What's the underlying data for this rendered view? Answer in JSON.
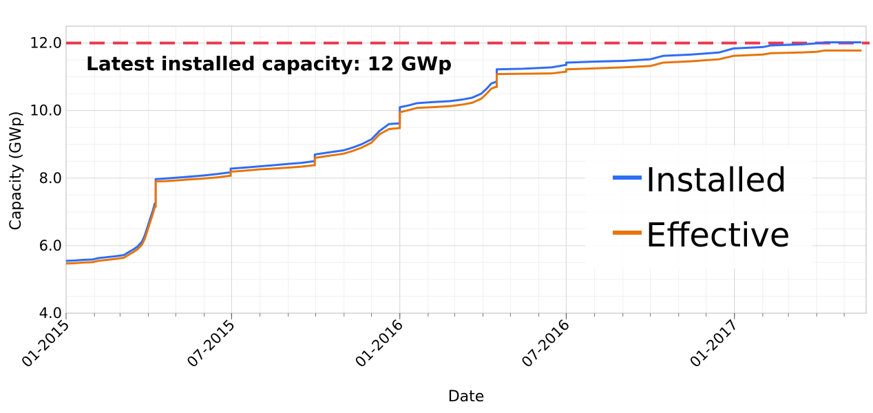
{
  "chart_data": {
    "type": "line",
    "xlabel": "Date",
    "ylabel": "Capacity (GWp)",
    "x_ticks": [
      "01-2015",
      "07-2015",
      "01-2016",
      "07-2016",
      "01-2017"
    ],
    "y_ticks": [
      "4.0",
      "6.0",
      "8.0",
      "10.0",
      "12.0"
    ],
    "xlim": [
      "2015-01-01",
      "2017-05-25"
    ],
    "ylim": [
      4.0,
      12.5
    ],
    "grid": true,
    "legend_position": "center-right",
    "annotation": "Latest installed capacity: 12 GWp",
    "reference_line": {
      "y": 12.0,
      "style": "dashed",
      "color": "#e8384f"
    },
    "series": [
      {
        "name": "Installed",
        "color": "#2f6cf6",
        "points": [
          [
            "2015-01-01",
            5.55
          ],
          [
            "2015-01-10",
            5.56
          ],
          [
            "2015-01-20",
            5.58
          ],
          [
            "2015-01-30",
            5.59
          ],
          [
            "2015-02-05",
            5.63
          ],
          [
            "2015-02-15",
            5.66
          ],
          [
            "2015-02-25",
            5.69
          ],
          [
            "2015-03-05",
            5.72
          ],
          [
            "2015-03-10",
            5.8
          ],
          [
            "2015-03-15",
            5.88
          ],
          [
            "2015-03-20",
            5.97
          ],
          [
            "2015-03-25",
            6.12
          ],
          [
            "2015-03-28",
            6.3
          ],
          [
            "2015-03-31",
            6.55
          ],
          [
            "2015-04-03",
            6.8
          ],
          [
            "2015-04-06",
            7.05
          ],
          [
            "2015-04-08",
            7.25
          ],
          [
            "2015-04-09",
            7.97
          ],
          [
            "2015-04-20",
            7.99
          ],
          [
            "2015-05-01",
            8.01
          ],
          [
            "2015-05-15",
            8.04
          ],
          [
            "2015-06-01",
            8.08
          ],
          [
            "2015-06-15",
            8.12
          ],
          [
            "2015-06-29",
            8.17
          ],
          [
            "2015-06-30",
            8.28
          ],
          [
            "2015-07-15",
            8.31
          ],
          [
            "2015-08-01",
            8.35
          ],
          [
            "2015-08-15",
            8.38
          ],
          [
            "2015-09-01",
            8.42
          ],
          [
            "2015-09-15",
            8.45
          ],
          [
            "2015-09-29",
            8.5
          ],
          [
            "2015-09-30",
            8.7
          ],
          [
            "2015-10-15",
            8.76
          ],
          [
            "2015-10-31",
            8.82
          ],
          [
            "2015-11-10",
            8.9
          ],
          [
            "2015-11-20",
            9.0
          ],
          [
            "2015-12-01",
            9.15
          ],
          [
            "2015-12-10",
            9.4
          ],
          [
            "2015-12-20",
            9.6
          ],
          [
            "2015-12-31",
            9.62
          ],
          [
            "2016-01-01",
            10.1
          ],
          [
            "2016-01-10",
            10.15
          ],
          [
            "2016-01-20",
            10.22
          ],
          [
            "2016-02-05",
            10.25
          ],
          [
            "2016-02-25",
            10.28
          ],
          [
            "2016-03-10",
            10.33
          ],
          [
            "2016-03-20",
            10.38
          ],
          [
            "2016-03-30",
            10.5
          ],
          [
            "2016-04-05",
            10.65
          ],
          [
            "2016-04-10",
            10.8
          ],
          [
            "2016-04-15",
            10.85
          ],
          [
            "2016-04-16",
            11.22
          ],
          [
            "2016-05-15",
            11.24
          ],
          [
            "2016-06-15",
            11.28
          ],
          [
            "2016-06-30",
            11.35
          ],
          [
            "2016-07-01",
            11.42
          ],
          [
            "2016-08-01",
            11.45
          ],
          [
            "2016-09-01",
            11.47
          ],
          [
            "2016-10-01",
            11.52
          ],
          [
            "2016-10-15",
            11.62
          ],
          [
            "2016-11-15",
            11.66
          ],
          [
            "2016-12-15",
            11.72
          ],
          [
            "2016-12-31",
            11.84
          ],
          [
            "2017-02-01",
            11.88
          ],
          [
            "2017-02-10",
            11.93
          ],
          [
            "2017-03-15",
            11.96
          ],
          [
            "2017-04-01",
            11.99
          ],
          [
            "2017-04-10",
            12.02
          ],
          [
            "2017-05-20",
            12.02
          ]
        ]
      },
      {
        "name": "Effective",
        "color": "#e6750c",
        "points": [
          [
            "2015-01-01",
            5.47
          ],
          [
            "2015-01-10",
            5.48
          ],
          [
            "2015-01-20",
            5.5
          ],
          [
            "2015-01-30",
            5.51
          ],
          [
            "2015-02-05",
            5.55
          ],
          [
            "2015-02-15",
            5.58
          ],
          [
            "2015-02-25",
            5.61
          ],
          [
            "2015-03-05",
            5.64
          ],
          [
            "2015-03-10",
            5.72
          ],
          [
            "2015-03-15",
            5.8
          ],
          [
            "2015-03-20",
            5.89
          ],
          [
            "2015-03-25",
            6.03
          ],
          [
            "2015-03-28",
            6.2
          ],
          [
            "2015-03-31",
            6.45
          ],
          [
            "2015-04-03",
            6.7
          ],
          [
            "2015-04-06",
            6.95
          ],
          [
            "2015-04-08",
            7.15
          ],
          [
            "2015-04-09",
            7.9
          ],
          [
            "2015-04-20",
            7.91
          ],
          [
            "2015-05-01",
            7.93
          ],
          [
            "2015-05-15",
            7.96
          ],
          [
            "2015-06-01",
            7.99
          ],
          [
            "2015-06-15",
            8.02
          ],
          [
            "2015-06-29",
            8.07
          ],
          [
            "2015-06-30",
            8.19
          ],
          [
            "2015-07-15",
            8.22
          ],
          [
            "2015-08-01",
            8.26
          ],
          [
            "2015-08-15",
            8.28
          ],
          [
            "2015-09-01",
            8.31
          ],
          [
            "2015-09-15",
            8.34
          ],
          [
            "2015-09-29",
            8.38
          ],
          [
            "2015-09-30",
            8.6
          ],
          [
            "2015-10-15",
            8.66
          ],
          [
            "2015-10-31",
            8.72
          ],
          [
            "2015-11-10",
            8.8
          ],
          [
            "2015-11-20",
            8.9
          ],
          [
            "2015-12-01",
            9.05
          ],
          [
            "2015-12-10",
            9.3
          ],
          [
            "2015-12-20",
            9.45
          ],
          [
            "2015-12-31",
            9.48
          ],
          [
            "2016-01-01",
            9.95
          ],
          [
            "2016-01-10",
            10.01
          ],
          [
            "2016-01-20",
            10.08
          ],
          [
            "2016-02-05",
            10.1
          ],
          [
            "2016-02-25",
            10.13
          ],
          [
            "2016-03-10",
            10.18
          ],
          [
            "2016-03-20",
            10.23
          ],
          [
            "2016-03-30",
            10.35
          ],
          [
            "2016-04-05",
            10.5
          ],
          [
            "2016-04-10",
            10.65
          ],
          [
            "2016-04-15",
            10.7
          ],
          [
            "2016-04-16",
            11.08
          ],
          [
            "2016-05-15",
            11.09
          ],
          [
            "2016-06-15",
            11.1
          ],
          [
            "2016-06-30",
            11.15
          ],
          [
            "2016-07-01",
            11.22
          ],
          [
            "2016-08-01",
            11.25
          ],
          [
            "2016-09-01",
            11.28
          ],
          [
            "2016-10-01",
            11.32
          ],
          [
            "2016-10-15",
            11.42
          ],
          [
            "2016-11-15",
            11.46
          ],
          [
            "2016-12-15",
            11.52
          ],
          [
            "2016-12-31",
            11.62
          ],
          [
            "2017-02-01",
            11.66
          ],
          [
            "2017-02-10",
            11.7
          ],
          [
            "2017-03-15",
            11.72
          ],
          [
            "2017-04-01",
            11.74
          ],
          [
            "2017-04-10",
            11.78
          ],
          [
            "2017-05-20",
            11.78
          ]
        ]
      }
    ]
  }
}
